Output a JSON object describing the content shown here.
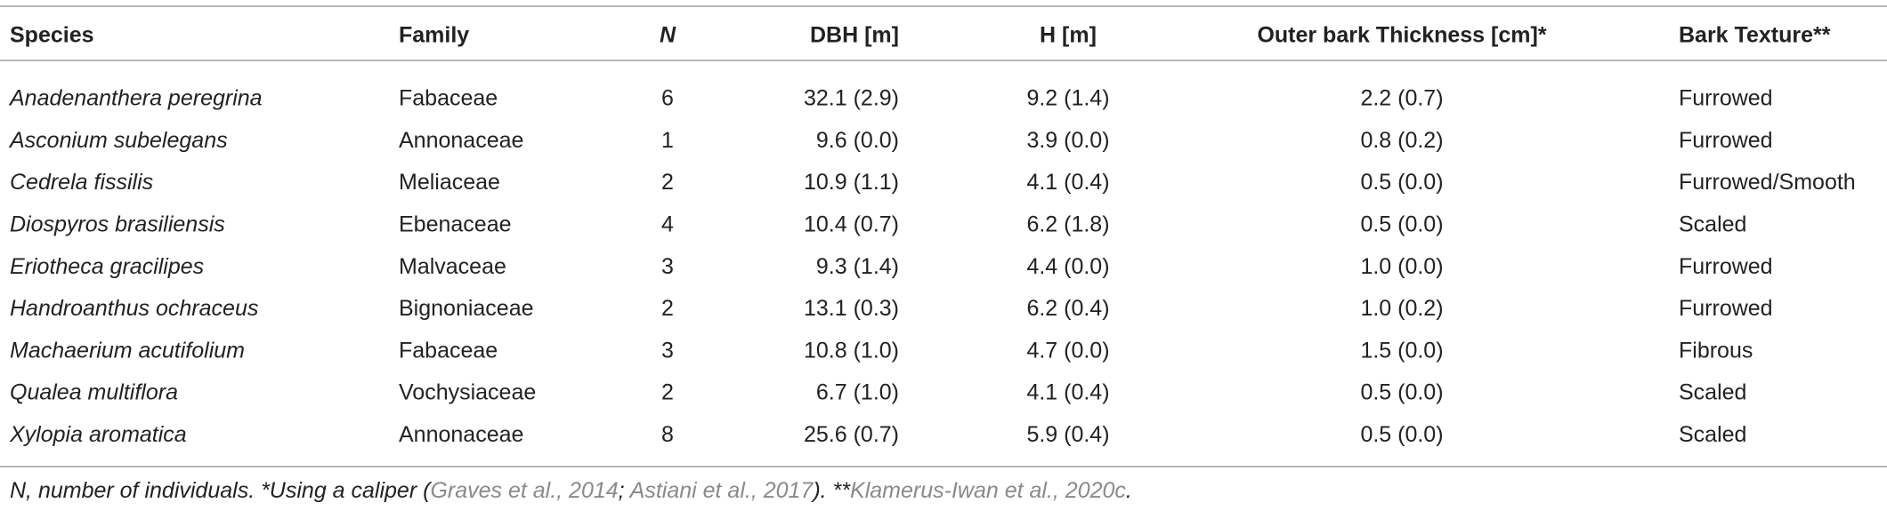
{
  "table": {
    "header": [
      "Species",
      "Family",
      "N",
      "DBH [m]",
      "H [m]",
      "Outer bark Thickness [cm]*",
      "Bark Texture**"
    ],
    "rows": [
      [
        "Anadenanthera peregrina",
        "Fabaceae",
        "6",
        "32.1 (2.9)",
        "9.2 (1.4)",
        "2.2 (0.7)",
        "Furrowed"
      ],
      [
        "Asconium subelegans",
        "Annonaceae",
        "1",
        "9.6 (0.0)",
        "3.9 (0.0)",
        "0.8 (0.2)",
        "Furrowed"
      ],
      [
        "Cedrela fissilis",
        "Meliaceae",
        "2",
        "10.9 (1.1)",
        "4.1 (0.4)",
        "0.5 (0.0)",
        "Furrowed/Smooth"
      ],
      [
        "Diospyros brasiliensis",
        "Ebenaceae",
        "4",
        "10.4 (0.7)",
        "6.2 (1.8)",
        "0.5 (0.0)",
        "Scaled"
      ],
      [
        "Eriotheca gracilipes",
        "Malvaceae",
        "3",
        "9.3 (1.4)",
        "4.4 (0.0)",
        "1.0 (0.0)",
        "Furrowed"
      ],
      [
        "Handroanthus ochraceus",
        "Bignoniaceae",
        "2",
        "13.1 (0.3)",
        "6.2 (0.4)",
        "1.0 (0.2)",
        "Furrowed"
      ],
      [
        "Machaerium acutifolium",
        "Fabaceae",
        "3",
        "10.8 (1.0)",
        "4.7 (0.0)",
        "1.5 (0.0)",
        "Fibrous"
      ],
      [
        "Qualea multiflora",
        "Vochysiaceae",
        "2",
        "6.7 (1.0)",
        "4.1 (0.4)",
        "0.5 (0.0)",
        "Scaled"
      ],
      [
        "Xylopia aromatica",
        "Annonaceae",
        "8",
        "25.6 (0.7)",
        "5.9 (0.4)",
        "0.5 (0.0)",
        "Scaled"
      ]
    ]
  },
  "footnote": [
    "N, number of individuals. *Using a caliper (",
    "Graves et al., 2014",
    "; ",
    "Astiani et al., 2017",
    "). **",
    "Klamerus-Iwan et al., 2020c",
    "."
  ]
}
